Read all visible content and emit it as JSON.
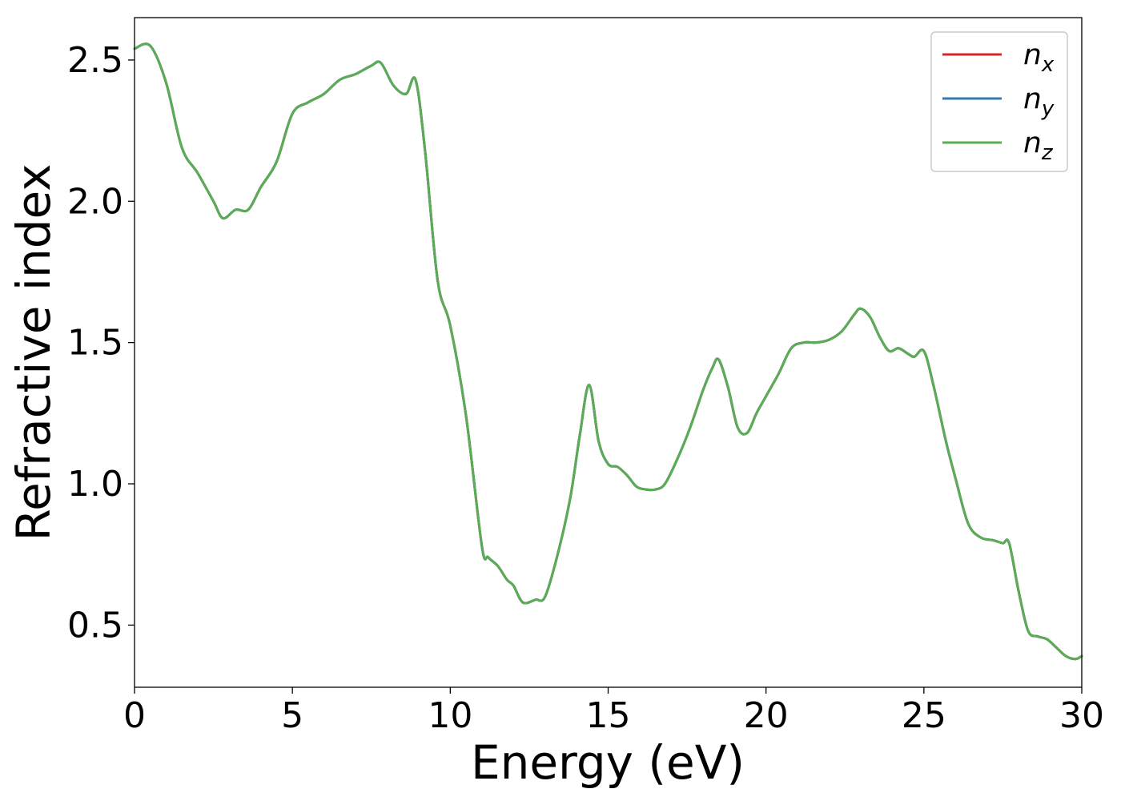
{
  "chart_data": {
    "type": "line",
    "title": "",
    "xlabel": "Energy (eV)",
    "ylabel": "Refractive index",
    "xlim": [
      0,
      30
    ],
    "ylim": [
      0.28,
      2.65
    ],
    "xticks": [
      0,
      5,
      10,
      15,
      20,
      25,
      30
    ],
    "xtick_labels": [
      "0",
      "5",
      "10",
      "15",
      "20",
      "25",
      "30"
    ],
    "yticks": [
      0.5,
      1.0,
      1.5,
      2.0,
      2.5
    ],
    "ytick_labels": [
      "0.5",
      "1.0",
      "1.5",
      "2.0",
      "2.5"
    ],
    "grid": false,
    "legend_position": "top-right",
    "x": [
      0,
      0.5,
      1.0,
      1.5,
      2.0,
      2.5,
      2.8,
      3.2,
      3.6,
      4.0,
      4.5,
      5.0,
      5.5,
      6.0,
      6.5,
      7.0,
      7.5,
      7.8,
      8.2,
      8.6,
      8.9,
      9.2,
      9.6,
      10.0,
      10.5,
      11.0,
      11.2,
      11.5,
      11.8,
      12.0,
      12.3,
      12.7,
      13.0,
      13.4,
      13.8,
      14.1,
      14.4,
      14.7,
      15.0,
      15.3,
      15.6,
      15.9,
      16.2,
      16.5,
      16.8,
      17.2,
      17.6,
      18.0,
      18.3,
      18.5,
      18.8,
      19.1,
      19.4,
      19.7,
      20.0,
      20.4,
      20.8,
      21.2,
      21.6,
      22.0,
      22.4,
      22.8,
      23.0,
      23.3,
      23.6,
      23.9,
      24.2,
      24.5,
      24.7,
      25.0,
      25.3,
      25.7,
      26.0,
      26.4,
      26.8,
      27.2,
      27.5,
      27.7,
      28.0,
      28.3,
      28.6,
      28.9,
      29.2,
      29.5,
      29.8,
      30.0
    ],
    "series": [
      {
        "name": "n_x",
        "color": "#d62728",
        "values": [
          2.54,
          2.55,
          2.42,
          2.19,
          2.1,
          2.0,
          1.94,
          1.97,
          1.97,
          2.05,
          2.14,
          2.31,
          2.35,
          2.38,
          2.43,
          2.45,
          2.48,
          2.49,
          2.41,
          2.38,
          2.43,
          2.18,
          1.72,
          1.56,
          1.24,
          0.78,
          0.74,
          0.71,
          0.66,
          0.64,
          0.58,
          0.59,
          0.6,
          0.75,
          0.95,
          1.17,
          1.35,
          1.15,
          1.07,
          1.06,
          1.03,
          0.99,
          0.98,
          0.98,
          1.0,
          1.09,
          1.2,
          1.33,
          1.41,
          1.44,
          1.34,
          1.2,
          1.18,
          1.25,
          1.31,
          1.39,
          1.48,
          1.5,
          1.5,
          1.51,
          1.54,
          1.6,
          1.62,
          1.59,
          1.52,
          1.47,
          1.48,
          1.46,
          1.45,
          1.47,
          1.35,
          1.15,
          1.02,
          0.86,
          0.81,
          0.8,
          0.79,
          0.79,
          0.62,
          0.48,
          0.46,
          0.45,
          0.42,
          0.39,
          0.38,
          0.39
        ]
      },
      {
        "name": "n_y",
        "color": "#3a78b0",
        "values": [
          2.54,
          2.55,
          2.42,
          2.19,
          2.1,
          2.0,
          1.94,
          1.97,
          1.97,
          2.05,
          2.14,
          2.31,
          2.35,
          2.38,
          2.43,
          2.45,
          2.48,
          2.49,
          2.41,
          2.38,
          2.43,
          2.18,
          1.72,
          1.56,
          1.24,
          0.78,
          0.74,
          0.71,
          0.66,
          0.64,
          0.58,
          0.59,
          0.6,
          0.75,
          0.95,
          1.17,
          1.35,
          1.15,
          1.07,
          1.06,
          1.03,
          0.99,
          0.98,
          0.98,
          1.0,
          1.09,
          1.2,
          1.33,
          1.41,
          1.44,
          1.34,
          1.2,
          1.18,
          1.25,
          1.31,
          1.39,
          1.48,
          1.5,
          1.5,
          1.51,
          1.54,
          1.6,
          1.62,
          1.59,
          1.52,
          1.47,
          1.48,
          1.46,
          1.45,
          1.47,
          1.35,
          1.15,
          1.02,
          0.86,
          0.81,
          0.8,
          0.79,
          0.79,
          0.62,
          0.48,
          0.46,
          0.45,
          0.42,
          0.39,
          0.38,
          0.39
        ]
      },
      {
        "name": "n_z",
        "color": "#5aac55",
        "values": [
          2.54,
          2.55,
          2.42,
          2.19,
          2.1,
          2.0,
          1.94,
          1.97,
          1.97,
          2.05,
          2.14,
          2.31,
          2.35,
          2.38,
          2.43,
          2.45,
          2.48,
          2.49,
          2.41,
          2.38,
          2.43,
          2.18,
          1.72,
          1.56,
          1.24,
          0.78,
          0.74,
          0.71,
          0.66,
          0.64,
          0.58,
          0.59,
          0.6,
          0.75,
          0.95,
          1.17,
          1.35,
          1.15,
          1.07,
          1.06,
          1.03,
          0.99,
          0.98,
          0.98,
          1.0,
          1.09,
          1.2,
          1.33,
          1.41,
          1.44,
          1.34,
          1.2,
          1.18,
          1.25,
          1.31,
          1.39,
          1.48,
          1.5,
          1.5,
          1.51,
          1.54,
          1.6,
          1.62,
          1.59,
          1.52,
          1.47,
          1.48,
          1.46,
          1.45,
          1.47,
          1.35,
          1.15,
          1.02,
          0.86,
          0.81,
          0.8,
          0.79,
          0.79,
          0.62,
          0.48,
          0.46,
          0.45,
          0.42,
          0.39,
          0.38,
          0.39
        ]
      }
    ],
    "legend": [
      {
        "base": "n",
        "sub": "x"
      },
      {
        "base": "n",
        "sub": "y"
      },
      {
        "base": "n",
        "sub": "z"
      }
    ]
  }
}
